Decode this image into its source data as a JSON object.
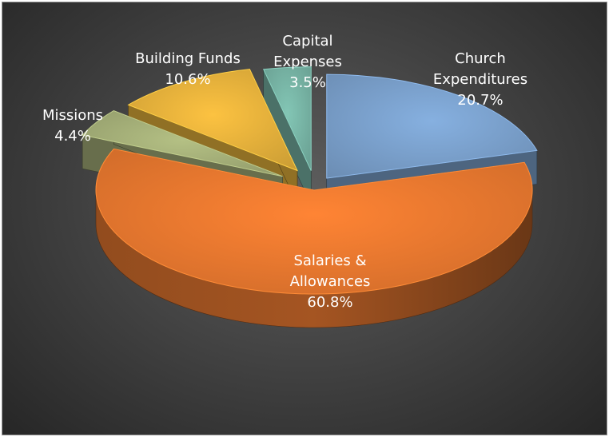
{
  "chart_data": {
    "type": "pie",
    "title": "",
    "slices": [
      {
        "name": "Church Expenditures",
        "value": 20.7,
        "value_label": "20.7%",
        "color": "#7ca3cf",
        "label_color": "#ffffff",
        "label_lines": [
          "Church",
          "Expenditures",
          "20.7%"
        ]
      },
      {
        "name": "Salaries & Allowances",
        "value": 60.8,
        "value_label": "60.8%",
        "color": "#ec7a30",
        "label_color": "#ffffff",
        "label_lines": [
          "Salaries &",
          "Allowances",
          "60.8%"
        ]
      },
      {
        "name": "Missions",
        "value": 4.4,
        "value_label": "4.4%",
        "color": "#a7b27a",
        "label_color": "#ffffff",
        "label_lines": [
          "Missions",
          "4.4%"
        ]
      },
      {
        "name": "Building Funds",
        "value": 10.6,
        "value_label": "10.6%",
        "color": "#e9b43c",
        "label_color": "#ffffff",
        "label_lines": [
          "Building Funds",
          "10.6%"
        ]
      },
      {
        "name": "Capital Expenses",
        "value": 3.5,
        "value_label": "3.5%",
        "color": "#79b7a8",
        "label_color": "#ffffff",
        "label_lines": [
          "Capital",
          "Expenses",
          "3.5%"
        ]
      }
    ]
  }
}
